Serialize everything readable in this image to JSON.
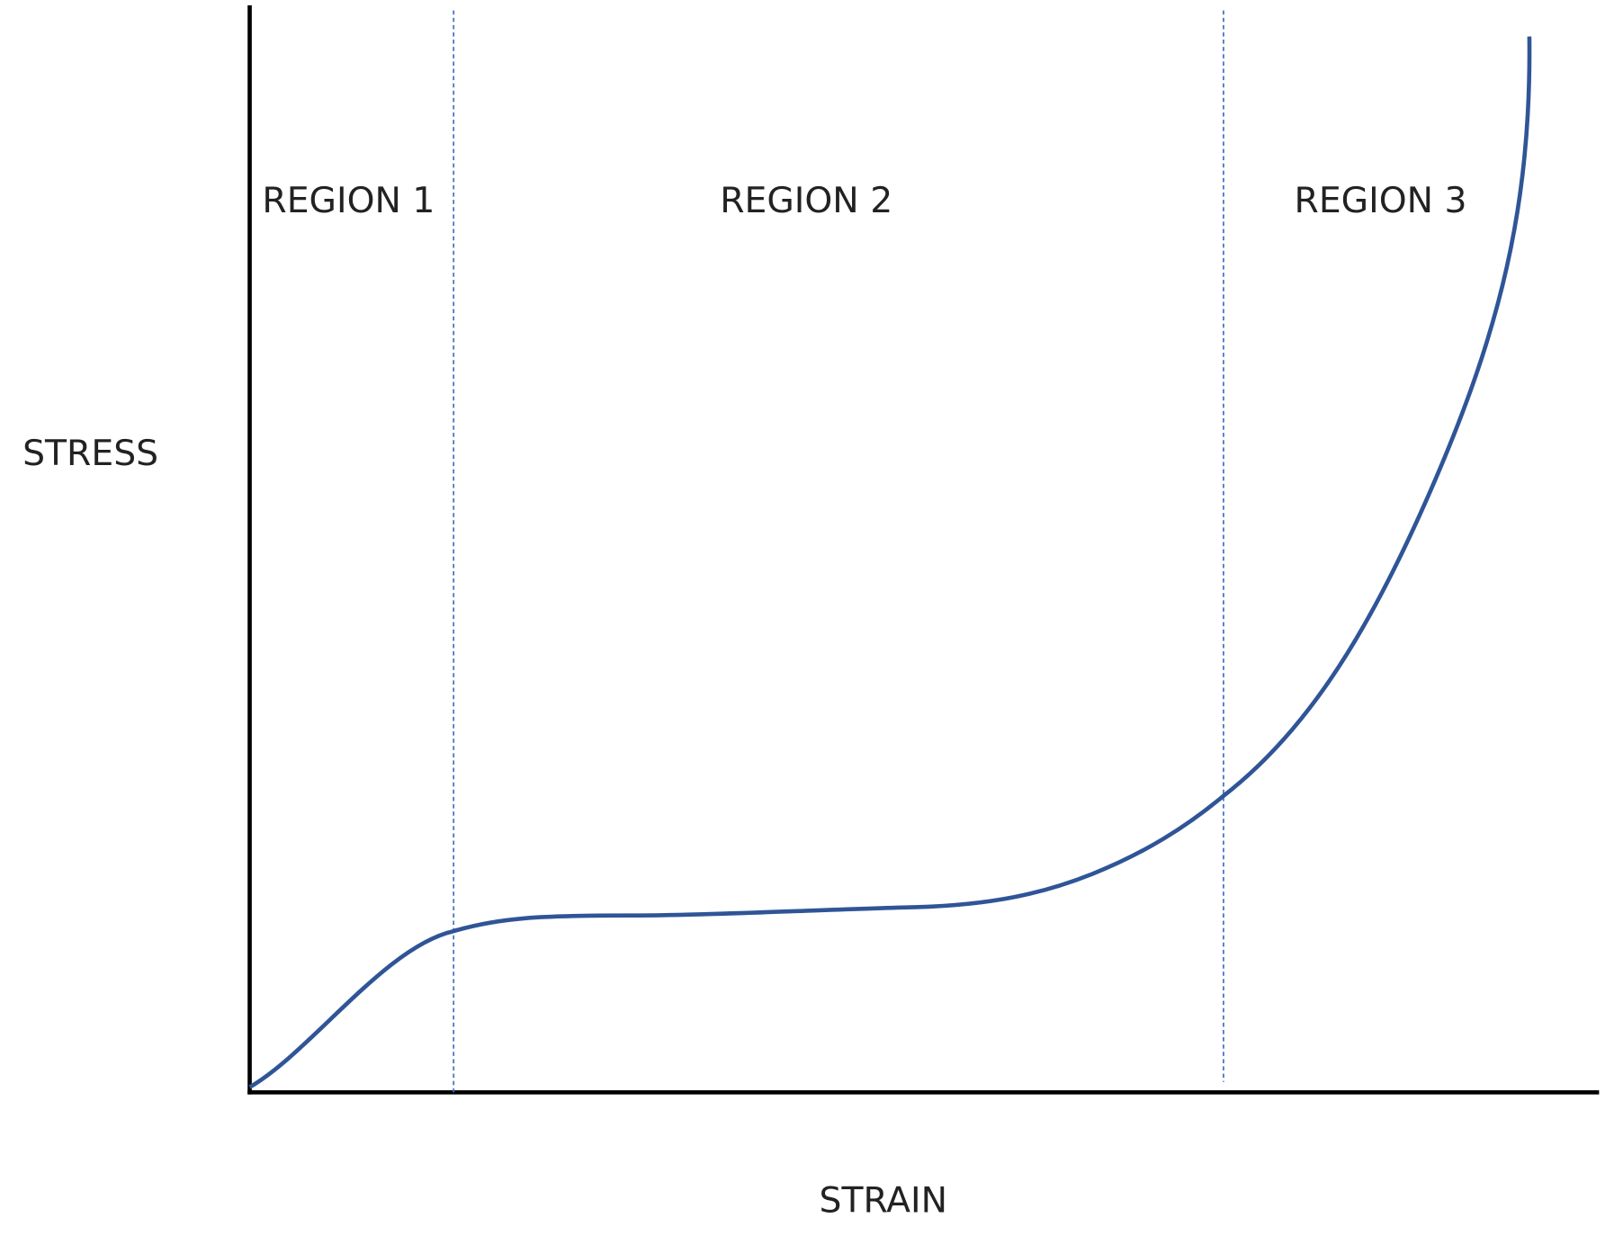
{
  "labels": {
    "y_axis": "STRESS",
    "x_axis": "STRAIN"
  },
  "regions": [
    {
      "label": "REGION 1"
    },
    {
      "label": "REGION 2"
    },
    {
      "label": "REGION 3"
    }
  ]
}
